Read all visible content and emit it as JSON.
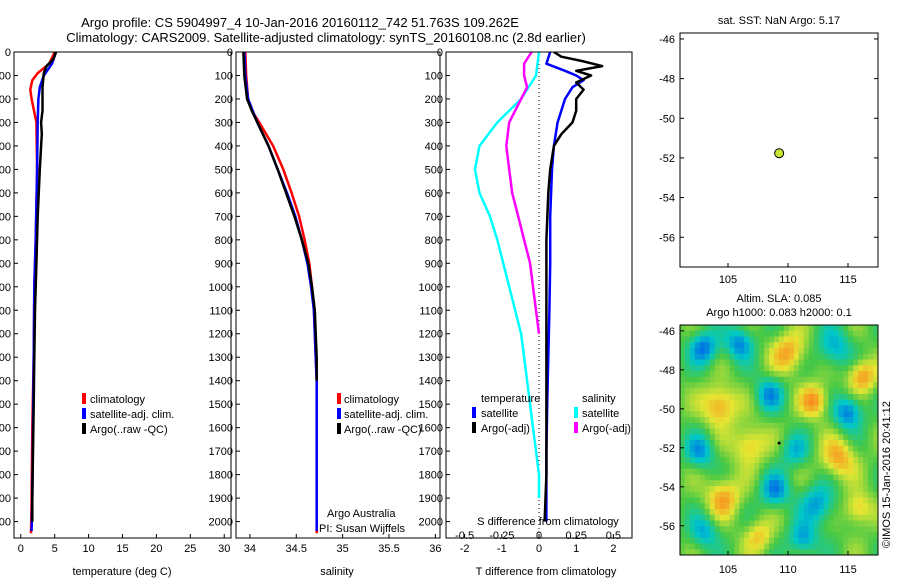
{
  "title": {
    "line1": "Argo profile: CS 5904997_4 10-Jan-2016 20160112_742 51.763S 109.262E",
    "line2": "Climatology: CARS2009. Satellite-adjusted climatology: synTS_20160108.nc (2.8d earlier)"
  },
  "depth_ticks": [
    "0",
    "100",
    "200",
    "300",
    "400",
    "500",
    "600",
    "700",
    "800",
    "900",
    "1000",
    "1100",
    "1200",
    "1300",
    "1400",
    "1500",
    "1600",
    "1700",
    "1800",
    "1900",
    "2000"
  ],
  "panels": {
    "temperature": {
      "xlabel": "temperature (deg C)",
      "xticks": [
        "0",
        "5",
        "10",
        "15",
        "20",
        "25",
        "30"
      ],
      "legend": [
        "climatology",
        "satellite-adj. clim.",
        "Argo(..raw -QC)"
      ]
    },
    "salinity": {
      "xlabel": "salinity",
      "xticks": [
        "34",
        "34.5",
        "35",
        "35.5",
        "36"
      ],
      "legend": [
        "climatology",
        "satellite-adj. clim.",
        "Argo(..raw -QC)"
      ],
      "note1": "Argo Australia",
      "note2": "PI: Susan Wijffels"
    },
    "difference": {
      "xlabel": "T difference from climatology",
      "top_label": "S difference from climatology",
      "xticks": [
        "-2",
        "-1",
        "0",
        "1",
        "2"
      ],
      "sticks": [
        "-0.5",
        "-0.25",
        "0",
        "0.25",
        "0.5"
      ],
      "legend_head_t": "temperature",
      "legend_head_s": "salinity",
      "legend_t": [
        "satellite",
        "Argo(-adj)"
      ],
      "legend_s": [
        "satellite",
        "Argo(-adj)"
      ]
    },
    "location": {
      "title": "sat. SST: NaN Argo: 5.17",
      "yticks": [
        "-46",
        "-48",
        "-50",
        "-52",
        "-54",
        "-56"
      ],
      "xticks": [
        "105",
        "110",
        "115"
      ]
    },
    "sla": {
      "title1": "Altim. SLA: 0.085",
      "title2": "Argo h1000: 0.083 h2000: 0.1",
      "yticks": [
        "-46",
        "-48",
        "-50",
        "-52",
        "-54",
        "-56"
      ],
      "xticks": [
        "105",
        "110",
        "115"
      ]
    }
  },
  "side_label": "©IMOS 15-Jan-2016 20:41:12",
  "colors": {
    "climatology": "#ff0000",
    "satellite_adj": "#0000ff",
    "argo": "#000000",
    "salinity_satellite": "#00ffff",
    "salinity_argo": "#ff00ff",
    "marker": "#c8e632"
  },
  "chart_data": [
    {
      "type": "line",
      "panel": "temperature",
      "xlabel": "temperature (deg C)",
      "ylabel": "",
      "xlim": [
        -1,
        31
      ],
      "ylim": [
        2070,
        0
      ],
      "series": [
        {
          "name": "climatology",
          "depth": [
            0,
            50,
            90,
            120,
            160,
            200,
            300,
            500,
            800,
            1000,
            1300,
            1600,
            1900,
            2050
          ],
          "values": [
            5.0,
            4.2,
            2.5,
            1.7,
            1.4,
            1.6,
            2.3,
            2.4,
            2.2,
            2.0,
            1.9,
            1.7,
            1.6,
            1.5
          ]
        },
        {
          "name": "satellite-adj. clim.",
          "depth": [
            0,
            50,
            100,
            150,
            200,
            300,
            500,
            800,
            1000,
            1300,
            1600,
            1900,
            2040
          ],
          "values": [
            5.2,
            4.6,
            3.4,
            2.8,
            2.6,
            2.5,
            2.4,
            2.2,
            2.0,
            1.9,
            1.8,
            1.7,
            1.6
          ]
        },
        {
          "name": "Argo(..raw -QC)",
          "depth": [
            0,
            30,
            60,
            90,
            150,
            250,
            300,
            350,
            400,
            500,
            700,
            900,
            1100,
            1300,
            1500,
            1700,
            1900,
            2000
          ],
          "values": [
            5.2,
            4.8,
            3.8,
            3.4,
            3.2,
            3.2,
            3.0,
            3.1,
            3.0,
            2.8,
            2.5,
            2.3,
            2.1,
            2.0,
            1.9,
            1.8,
            1.7,
            1.7
          ]
        }
      ]
    },
    {
      "type": "line",
      "panel": "salinity",
      "xlabel": "salinity",
      "ylabel": "",
      "xlim": [
        33.85,
        36.05
      ],
      "ylim": [
        2070,
        0
      ],
      "series": [
        {
          "name": "climatology",
          "depth": [
            0,
            100,
            200,
            250,
            300,
            400,
            500,
            600,
            700,
            800,
            900,
            1000,
            1100,
            1200,
            1300,
            1400,
            1500,
            1800,
            2050
          ],
          "values": [
            33.95,
            33.96,
            33.98,
            34.02,
            34.1,
            34.25,
            34.36,
            34.45,
            34.53,
            34.59,
            34.64,
            34.67,
            34.69,
            34.7,
            34.71,
            34.72,
            34.72,
            34.72,
            34.72
          ]
        },
        {
          "name": "satellite-adj. clim.",
          "depth": [
            0,
            100,
            200,
            250,
            300,
            400,
            500,
            600,
            700,
            800,
            900,
            1000,
            1100,
            1200,
            1300,
            1400,
            1500,
            1800,
            2040
          ],
          "values": [
            33.94,
            33.95,
            33.98,
            34.03,
            34.08,
            34.2,
            34.3,
            34.4,
            34.49,
            34.56,
            34.62,
            34.66,
            34.69,
            34.7,
            34.71,
            34.72,
            34.72,
            34.72,
            34.72
          ]
        },
        {
          "name": "Argo(..raw -QC)",
          "depth": [
            0,
            100,
            200,
            250,
            300,
            400,
            500,
            600,
            700,
            800,
            900,
            1000,
            1100,
            1200,
            1300,
            1400
          ],
          "values": [
            33.93,
            33.94,
            33.97,
            34.02,
            34.08,
            34.2,
            34.3,
            34.39,
            34.48,
            34.56,
            34.63,
            34.67,
            34.7,
            34.71,
            34.72,
            34.72
          ]
        }
      ]
    },
    {
      "type": "line",
      "panel": "difference",
      "xlabel": "T difference from climatology",
      "ylabel": "",
      "xlim": [
        -2.5,
        2.5
      ],
      "ylim": [
        2070,
        0
      ],
      "series": [
        {
          "name": "satellite",
          "variable": "temperature",
          "depth": [
            0,
            50,
            80,
            100,
            120,
            150,
            200,
            250,
            300,
            400,
            500,
            700,
            900,
            1100,
            1300,
            1500,
            1700,
            1900,
            2000
          ],
          "values": [
            0.3,
            0.2,
            0.7,
            1.0,
            1.2,
            0.9,
            0.7,
            0.6,
            0.5,
            0.4,
            0.35,
            0.3,
            0.3,
            0.28,
            0.25,
            0.22,
            0.2,
            0.2,
            0.2
          ]
        },
        {
          "name": "Argo(-adj)",
          "variable": "temperature",
          "depth": [
            0,
            20,
            40,
            60,
            80,
            100,
            130,
            160,
            200,
            250,
            300,
            350,
            400,
            500,
            600,
            800,
            1000,
            1200,
            1400,
            1600,
            1800,
            2000
          ],
          "values": [
            0.4,
            0.6,
            1.2,
            1.7,
            1.0,
            1.4,
            1.0,
            1.2,
            1.0,
            1.0,
            0.9,
            0.6,
            0.4,
            0.3,
            0.25,
            0.2,
            0.2,
            0.2,
            0.2,
            0.2,
            0.2,
            0.15
          ]
        },
        {
          "name": "satellite",
          "variable": "salinity",
          "depth": [
            0,
            100,
            200,
            300,
            400,
            500,
            600,
            700,
            800,
            1000,
            1200,
            1400,
            1600,
            1800,
            1900
          ],
          "values": [
            0.0,
            -0.02,
            -0.12,
            -0.28,
            -0.4,
            -0.43,
            -0.4,
            -0.33,
            -0.28,
            -0.2,
            -0.12,
            -0.08,
            -0.04,
            0.0,
            0.0
          ]
        },
        {
          "name": "Argo(-adj)",
          "variable": "salinity",
          "depth": [
            0,
            50,
            100,
            150,
            200,
            300,
            400,
            500,
            600,
            700,
            800,
            900,
            1000,
            1100,
            1200
          ],
          "values": [
            -0.05,
            -0.1,
            -0.1,
            -0.08,
            -0.12,
            -0.2,
            -0.22,
            -0.2,
            -0.18,
            -0.14,
            -0.1,
            -0.06,
            -0.04,
            -0.02,
            0.0
          ]
        }
      ]
    },
    {
      "type": "scatter",
      "panel": "location",
      "title": "sat. SST: NaN Argo: 5.17",
      "xlim": [
        101,
        117.5
      ],
      "ylim": [
        -57.5,
        -45.7
      ],
      "points": [
        {
          "x": 109.262,
          "y": -51.763
        }
      ]
    },
    {
      "type": "heatmap",
      "panel": "sla",
      "title": "Altim. SLA: 0.085",
      "xlim": [
        101,
        117.5
      ],
      "ylim": [
        -57.5,
        -45.7
      ]
    }
  ]
}
